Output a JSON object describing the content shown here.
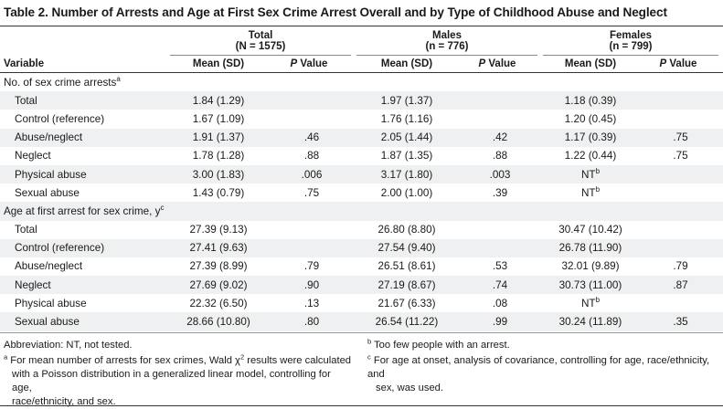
{
  "title": "Table 2. Number of Arrests and Age at First Sex Crime Arrest Overall and by Type of Childhood Abuse and Neglect",
  "groups": [
    {
      "name": "Total",
      "n": "(N = 1575)"
    },
    {
      "name": "Males",
      "n": "(n = 776)"
    },
    {
      "name": "Females",
      "n": "(n = 799)"
    }
  ],
  "columns": {
    "variable": "Variable",
    "mean": "Mean (SD)",
    "p_italic": "P",
    "p_rest": " Value"
  },
  "sections": [
    {
      "label": "No. of sex crime arrests",
      "sup": "a",
      "rows": [
        {
          "label": "Total",
          "vals": [
            "1.84 (1.29)",
            "",
            "1.97 (1.37)",
            "",
            "1.18 (0.39)",
            ""
          ]
        },
        {
          "label": "Control (reference)",
          "vals": [
            "1.67 (1.09)",
            "",
            "1.76 (1.16)",
            "",
            "1.20 (0.45)",
            ""
          ]
        },
        {
          "label": "Abuse/neglect",
          "vals": [
            "1.91 (1.37)",
            ".46",
            "2.05 (1.44)",
            ".42",
            "1.17 (0.39)",
            ".75"
          ]
        },
        {
          "label": "Neglect",
          "vals": [
            "1.78 (1.28)",
            ".88",
            "1.87 (1.35)",
            ".88",
            "1.22 (0.44)",
            ".75"
          ]
        },
        {
          "label": "Physical abuse",
          "vals": [
            "3.00 (1.83)",
            ".006",
            "3.17 (1.80)",
            ".003",
            "NT",
            ""
          ],
          "fsup": "b"
        },
        {
          "label": "Sexual abuse",
          "vals": [
            "1.43 (0.79)",
            ".75",
            "2.00 (1.00)",
            ".39",
            "NT",
            ""
          ],
          "fsup": "b"
        }
      ]
    },
    {
      "label": "Age at first arrest for sex crime, y",
      "sup": "c",
      "rows": [
        {
          "label": "Total",
          "vals": [
            "27.39 (9.13)",
            "",
            "26.80 (8.80)",
            "",
            "30.47 (10.42)",
            ""
          ]
        },
        {
          "label": "Control (reference)",
          "vals": [
            "27.41 (9.63)",
            "",
            "27.54 (9.40)",
            "",
            "26.78 (11.90)",
            ""
          ]
        },
        {
          "label": "Abuse/neglect",
          "vals": [
            "27.39 (8.99)",
            ".79",
            "26.51 (8.61)",
            ".53",
            "32.01 (9.89)",
            ".79"
          ]
        },
        {
          "label": "Neglect",
          "vals": [
            "27.69 (9.02)",
            ".90",
            "27.19 (8.67)",
            ".74",
            "30.73 (11.00)",
            ".87"
          ]
        },
        {
          "label": "Physical abuse",
          "vals": [
            "22.32 (6.50)",
            ".13",
            "21.67 (6.33)",
            ".08",
            "NT",
            ""
          ],
          "fsup": "b"
        },
        {
          "label": "Sexual abuse",
          "vals": [
            "28.66 (10.80)",
            ".80",
            "26.54 (11.22)",
            ".99",
            "30.24 (11.89)",
            ".35"
          ]
        }
      ]
    }
  ],
  "footnotes": {
    "abbrev": "Abbreviation: NT, not tested.",
    "a_mark": "a",
    "a_text1": "For mean number of arrests for sex crimes, Wald χ",
    "a_text1_sup": "2",
    "a_text1_end": " results were calculated",
    "a_text2": "with a Poisson distribution in a generalized linear model, controlling for age,",
    "a_text3": "race/ethnicity, and sex.",
    "b_mark": "b",
    "b_text": "Too few people with an arrest.",
    "c_mark": "c",
    "c_text1": "For age at onset, analysis of covariance, controlling for age, race/ethnicity, and",
    "c_text2": "sex, was used."
  }
}
